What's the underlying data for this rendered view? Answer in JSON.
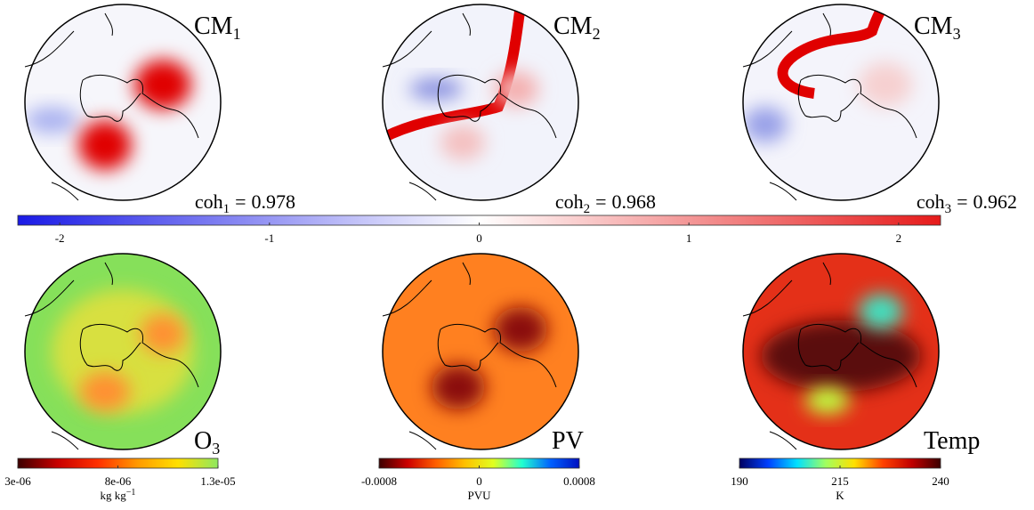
{
  "panels": [
    {
      "title": "CM",
      "title_subscript": "1",
      "coherence_label": "coh",
      "coherence_subscript": "1",
      "coherence": 0.978
    },
    {
      "title": "CM",
      "title_subscript": "2",
      "coherence_label": "coh",
      "coherence_subscript": "2",
      "coherence": 0.968
    },
    {
      "title": "CM",
      "title_subscript": "3",
      "coherence_label": "coh",
      "coherence_subscript": "3",
      "coherence": 0.962
    }
  ],
  "relation": "=",
  "bottom_panels": [
    {
      "title": "O",
      "title_subscript": "3"
    },
    {
      "title": "PV"
    },
    {
      "title": "Temp"
    }
  ],
  "colorbars": [
    {
      "lim": [
        -2.2,
        2.2
      ],
      "ticks": [
        -2,
        -1,
        0,
        1,
        2
      ],
      "colors": [
        "#1a1ae6",
        "#ffffff",
        "#e61a1a"
      ]
    },
    {
      "lim": [
        3e-06,
        1.3e-05
      ],
      "ticks": [
        {
          "value": 3e-06,
          "label": "3e-06"
        },
        {
          "value": 8e-06,
          "label": "8e-06"
        },
        {
          "value": 1.3e-05,
          "label": "1.3e-05"
        }
      ],
      "label": "kg kg",
      "label_superscript": "−1",
      "colors": [
        "#3c0000",
        "#c80000",
        "#ff3000",
        "#ff9a00",
        "#ffe000",
        "#8ee860"
      ]
    },
    {
      "lim": [
        -0.0008,
        0.0008
      ],
      "ticks": [
        -0.0008,
        0,
        0.0008
      ],
      "label": "PVU",
      "colors": [
        "#3c0000",
        "#cc0000",
        "#ff6000",
        "#ffc000",
        "#e0ff20",
        "#20ffd0",
        "#0060ff",
        "#0010c0"
      ]
    },
    {
      "lim": [
        190,
        240
      ],
      "ticks": [
        190,
        215,
        240
      ],
      "label": "K",
      "colors": [
        "#000060",
        "#0040ff",
        "#00e0ff",
        "#a0ff60",
        "#ffe000",
        "#ff4000",
        "#c00000",
        "#3c0000"
      ]
    }
  ]
}
